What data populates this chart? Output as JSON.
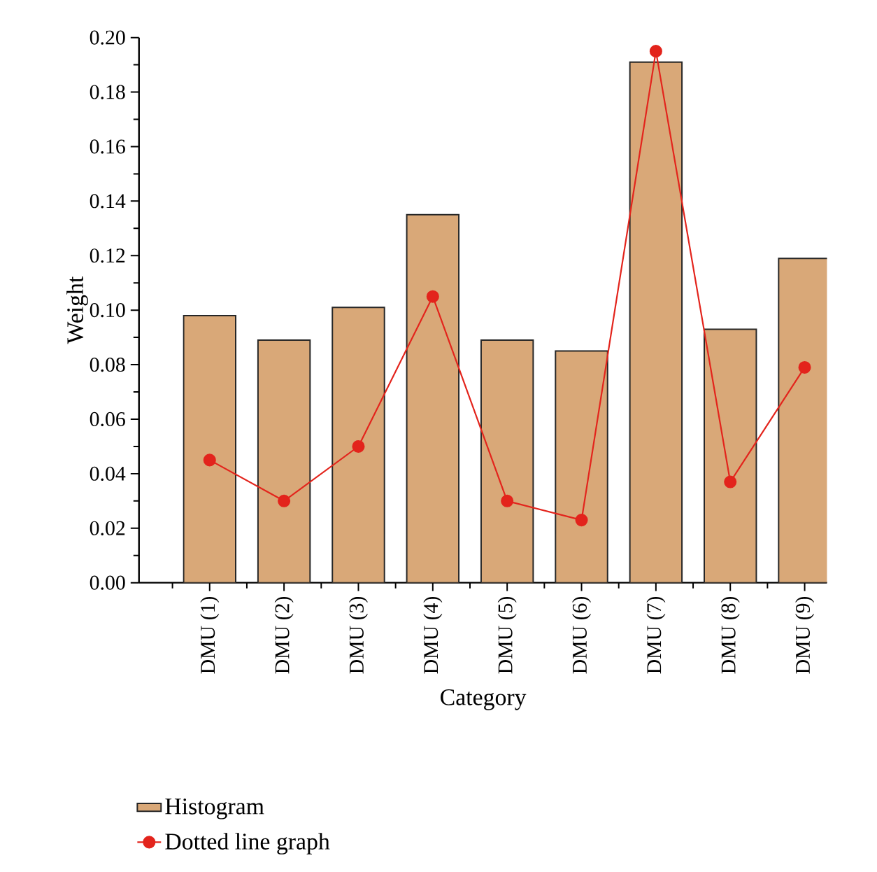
{
  "chart_data": {
    "type": "bar",
    "xlabel": "Category",
    "ylabel": "Weight",
    "categories": [
      "DMU (1)",
      "DMU (2)",
      "DMU (3)",
      "DMU (4)",
      "DMU (5)",
      "DMU (6)",
      "DMU (7)",
      "DMU (8)",
      "DMU (9)"
    ],
    "series": [
      {
        "name": "Histogram",
        "color": "#d9a878",
        "values": [
          0.098,
          0.089,
          0.101,
          0.135,
          0.089,
          0.085,
          0.191,
          0.093,
          0.119
        ]
      },
      {
        "name": "Dotted line graph",
        "type": "line",
        "color": "#e3241c",
        "marker": "circle",
        "values": [
          0.045,
          0.03,
          0.05,
          0.105,
          0.03,
          0.023,
          0.195,
          0.037,
          0.079
        ]
      }
    ],
    "ylim": [
      0,
      0.2
    ],
    "yticks": [
      {
        "value": 0,
        "label": "0.00"
      },
      {
        "value": 0.02,
        "label": "0.02"
      },
      {
        "value": 0.04,
        "label": "0.04"
      },
      {
        "value": 0.06,
        "label": "0.06"
      },
      {
        "value": 0.08,
        "label": "0.08"
      },
      {
        "value": 0.1,
        "label": "0.10"
      },
      {
        "value": 0.12,
        "label": "0.12"
      },
      {
        "value": 0.14,
        "label": "0.14"
      },
      {
        "value": 0.16,
        "label": "0.16"
      },
      {
        "value": 0.18,
        "label": "0.18"
      },
      {
        "value": 0.2,
        "label": "0.20"
      }
    ],
    "legend": "bottom left"
  }
}
